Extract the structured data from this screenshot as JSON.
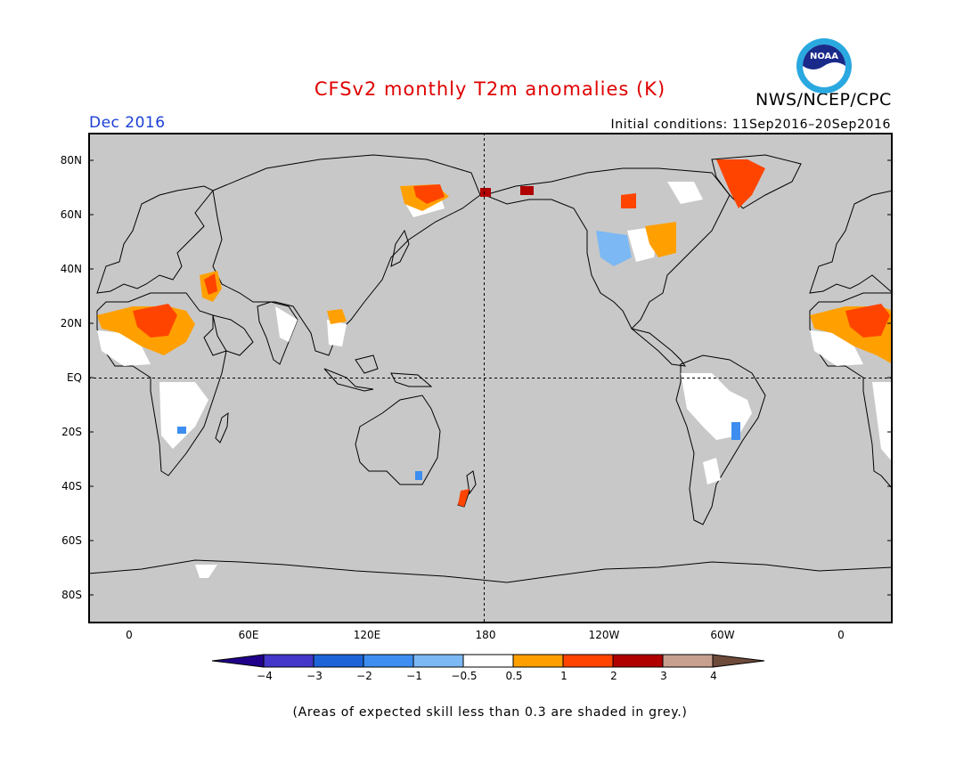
{
  "header": {
    "title": "CFSv2 monthly T2m anomalies (K)",
    "agency": "NWS/NCEP/CPC",
    "logo_text": "NOAA",
    "period": "Dec 2016",
    "initial_conditions": "Initial conditions: 11Sep2016–20Sep2016"
  },
  "map": {
    "projection": "cylindrical equidistant, centred on 180",
    "background_color": "#c8c8c8",
    "lat_labels": [
      "80N",
      "60N",
      "40N",
      "20N",
      "EQ",
      "20S",
      "40S",
      "60S",
      "80S"
    ],
    "lon_labels": [
      "0",
      "60E",
      "120E",
      "180",
      "120W",
      "60W",
      "0"
    ]
  },
  "legend": {
    "colors": [
      "#20008a",
      "#4436c8",
      "#1d64d8",
      "#3d8ef0",
      "#7cb8f4",
      "#ffffff",
      "#ffa000",
      "#ff4400",
      "#b00000",
      "#c8a090",
      "#6e4a3a"
    ],
    "labels": [
      "−4",
      "−3",
      "−2",
      "−1",
      "−0.5",
      "0.5",
      "1",
      "2",
      "3",
      "4"
    ]
  },
  "footnote": "(Areas of expected skill less than 0.3 are shaded in grey.)"
}
